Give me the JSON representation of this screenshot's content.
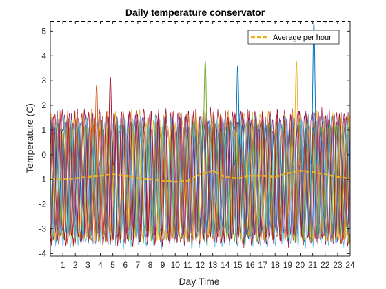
{
  "chart_data": {
    "type": "line",
    "title": "Daily temperature conservator",
    "xlabel": "Day Time",
    "ylabel": "Temperature (C)",
    "xlim": [
      0,
      24
    ],
    "ylim": [
      -4.1,
      5.4
    ],
    "x_ticks": [
      1,
      2,
      3,
      4,
      5,
      6,
      7,
      8,
      9,
      10,
      11,
      12,
      13,
      14,
      15,
      16,
      17,
      18,
      19,
      20,
      21,
      22,
      23,
      24
    ],
    "y_ticks": [
      -4,
      -3,
      -2,
      -1,
      0,
      1,
      2,
      3,
      4,
      5
    ],
    "grid": false,
    "legend": {
      "position": "top-right",
      "entries": [
        "Average per hour"
      ]
    },
    "reference_line": {
      "y": 5.4,
      "style": "dashed",
      "color": "#000000"
    },
    "series_palette": [
      "#0072BD",
      "#D95319",
      "#EDB120",
      "#7E2F8E",
      "#77AC30",
      "#4DBEEE",
      "#A2142F"
    ],
    "oscillation": {
      "period_hours": 0.6,
      "typical_min": -3.6,
      "typical_max": 1.6,
      "series_count": 14
    },
    "spikes": [
      {
        "x": 3.7,
        "y": 2.8,
        "color": "#D95319"
      },
      {
        "x": 4.8,
        "y": 3.15,
        "color": "#A2142F"
      },
      {
        "x": 12.4,
        "y": 3.8,
        "color": "#77AC30"
      },
      {
        "x": 15.0,
        "y": 3.6,
        "color": "#0072BD"
      },
      {
        "x": 19.7,
        "y": 3.8,
        "color": "#EDB120"
      },
      {
        "x": 21.1,
        "y": 5.35,
        "color": "#0072BD"
      }
    ],
    "average": {
      "name": "Average per hour",
      "color": "#EDB120",
      "style": "dashed",
      "x": [
        0,
        1,
        2,
        3,
        4,
        5,
        6,
        7,
        8,
        9,
        10,
        11,
        12,
        13,
        14,
        15,
        16,
        17,
        18,
        19,
        20,
        21,
        22,
        23,
        24
      ],
      "y": [
        -1.0,
        -1.0,
        -0.95,
        -0.9,
        -0.85,
        -0.8,
        -0.85,
        -0.95,
        -1.0,
        -1.05,
        -1.1,
        -1.05,
        -0.8,
        -0.65,
        -0.9,
        -0.95,
        -0.85,
        -0.85,
        -0.9,
        -0.75,
        -0.65,
        -0.7,
        -0.8,
        -0.9,
        -0.95
      ]
    }
  }
}
